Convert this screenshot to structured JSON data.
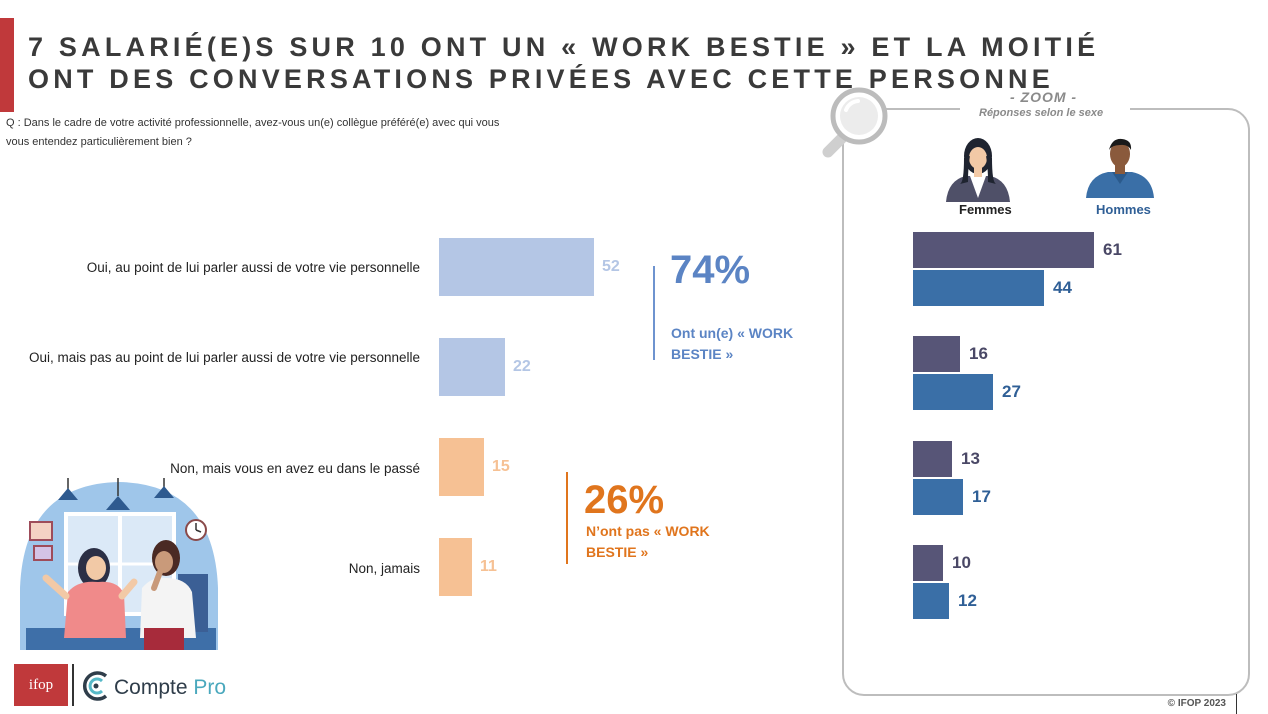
{
  "title": {
    "line1": "7 SALARIÉ(E)S SUR 10 ONT UN « WORK BESTIE » ET LA MOITIÉ",
    "line2": "ONT DES CONVERSATIONS PRIVÉES AVEC CETTE PERSONNE"
  },
  "question": {
    "line1": "Q : Dans le cadre de votre activité professionnelle, avez-vous un(e) collègue préféré(e) avec qui vous",
    "line2": "vous entendez particulièrement bien ?"
  },
  "colors": {
    "accent": "#c0393b",
    "yes_bar": "#b4c6e5",
    "no_bar": "#f6c194",
    "yes_text": "#5b84c4",
    "no_text": "#e0751d",
    "femmes": "#575577",
    "hommes": "#3a6fa7"
  },
  "chart_data": [
    {
      "type": "bar",
      "orientation": "horizontal",
      "categories": [
        "Oui, au point de lui parler aussi de votre vie personnelle",
        "Oui, mais pas au point de lui parler aussi de votre vie personnelle",
        "Non, mais vous en avez eu dans le passé",
        "Non, jamais"
      ],
      "values": [
        52,
        22,
        15,
        11
      ],
      "value_labels": [
        "52",
        "22",
        "15",
        "11"
      ],
      "groups": [
        {
          "percent": "74%",
          "label_line1": "Ont un(e) « WORK",
          "label_line2": "BESTIE »"
        },
        {
          "percent": "26%",
          "label_line1": "N’ont pas « WORK",
          "label_line2": "BESTIE »"
        }
      ]
    },
    {
      "type": "bar",
      "orientation": "horizontal",
      "title": "- ZOOM -",
      "subtitle": "Réponses selon le sexe",
      "series": [
        {
          "name": "Femmes",
          "values": [
            61,
            16,
            13,
            10
          ]
        },
        {
          "name": "Hommes",
          "values": [
            44,
            27,
            17,
            12
          ]
        }
      ]
    }
  ],
  "footer": {
    "copyright": "© IFOP 2023",
    "logo_ifop": "ifop",
    "logo_compte": "Compte",
    "logo_pro": "Pro"
  }
}
